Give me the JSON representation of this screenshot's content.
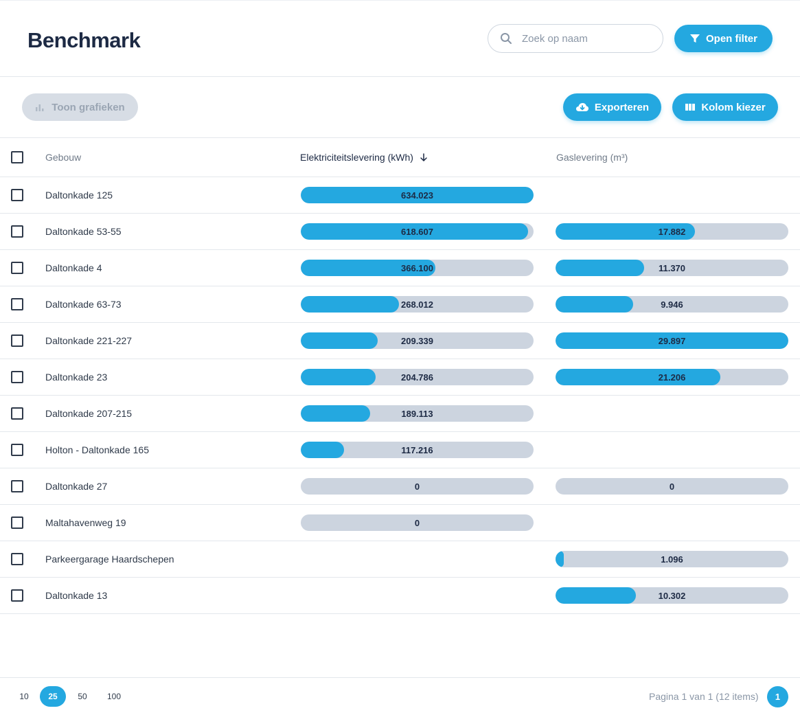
{
  "header": {
    "title": "Benchmark",
    "search_placeholder": "Zoek op naam",
    "filter_label": "Open filter"
  },
  "toolbar": {
    "charts_label": "Toon grafieken",
    "export_label": "Exporteren",
    "columns_label": "Kolom kiezer"
  },
  "table": {
    "columns": {
      "building": "Gebouw",
      "electricity": "Elektriciteitslevering (kWh)",
      "gas": "Gaslevering (m³)"
    },
    "max": {
      "electricity": 634023,
      "gas": 29897
    },
    "rows": [
      {
        "name": "Daltonkade 125",
        "electricity": 634023,
        "electricity_label": "634.023",
        "gas": null,
        "gas_label": ""
      },
      {
        "name": "Daltonkade 53-55",
        "electricity": 618607,
        "electricity_label": "618.607",
        "gas": 17882,
        "gas_label": "17.882"
      },
      {
        "name": "Daltonkade 4",
        "electricity": 366100,
        "electricity_label": "366.100",
        "gas": 11370,
        "gas_label": "11.370"
      },
      {
        "name": "Daltonkade 63-73",
        "electricity": 268012,
        "electricity_label": "268.012",
        "gas": 9946,
        "gas_label": "9.946"
      },
      {
        "name": "Daltonkade 221-227",
        "electricity": 209339,
        "electricity_label": "209.339",
        "gas": 29897,
        "gas_label": "29.897"
      },
      {
        "name": "Daltonkade 23",
        "electricity": 204786,
        "electricity_label": "204.786",
        "gas": 21206,
        "gas_label": "21.206"
      },
      {
        "name": "Daltonkade 207-215",
        "electricity": 189113,
        "electricity_label": "189.113",
        "gas": null,
        "gas_label": ""
      },
      {
        "name": "Holton - Daltonkade 165",
        "electricity": 117216,
        "electricity_label": "117.216",
        "gas": null,
        "gas_label": ""
      },
      {
        "name": "Daltonkade 27",
        "electricity": 0,
        "electricity_label": "0",
        "gas": 0,
        "gas_label": "0"
      },
      {
        "name": "Maltahavenweg 19",
        "electricity": 0,
        "electricity_label": "0",
        "gas": null,
        "gas_label": ""
      },
      {
        "name": "Parkeergarage Haardschepen",
        "electricity": null,
        "electricity_label": "",
        "gas": 1096,
        "gas_label": "1.096"
      },
      {
        "name": "Daltonkade 13",
        "electricity": null,
        "electricity_label": "",
        "gas": 10302,
        "gas_label": "10.302"
      }
    ]
  },
  "footer": {
    "page_sizes": [
      "10",
      "25",
      "50",
      "100"
    ],
    "active_page_size": "25",
    "page_info": "Pagina 1 van 1 (12 items)",
    "current_page": "1"
  },
  "colors": {
    "accent": "#24a8e0",
    "bar_track": "#ccd4df",
    "disabled_button": "#d7dde5",
    "title": "#1d2a44"
  },
  "icons": {
    "search": "search-icon",
    "filter": "funnel-icon",
    "charts": "bar-chart-icon",
    "export": "cloud-download-icon",
    "columns": "columns-icon",
    "sort": "arrow-down-icon"
  }
}
